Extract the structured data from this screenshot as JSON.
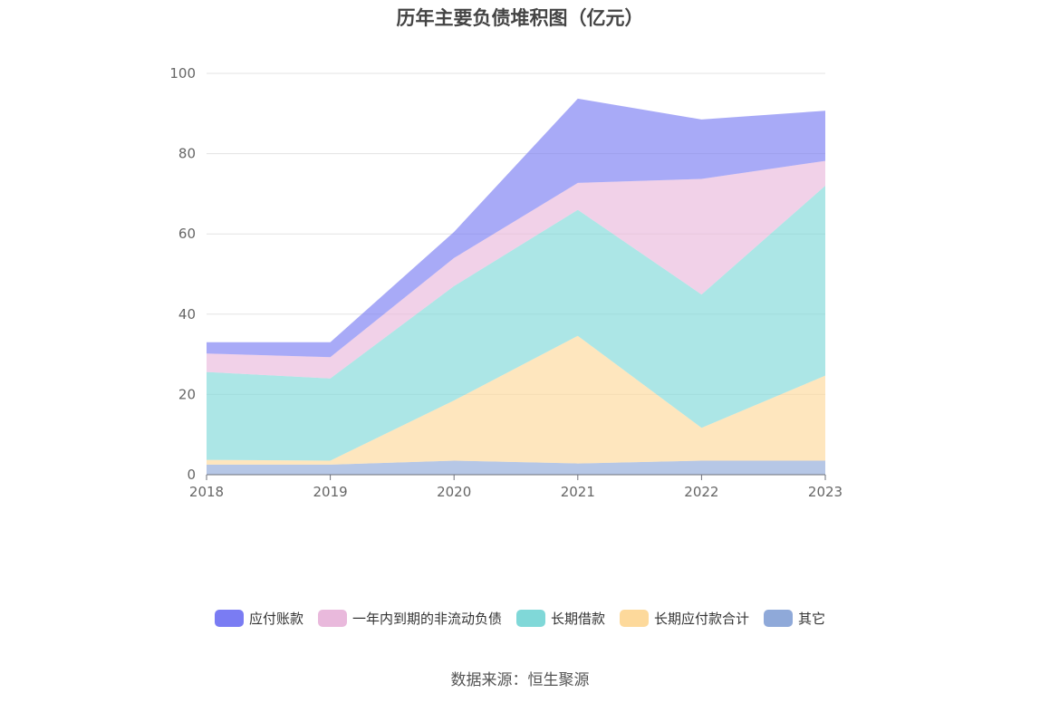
{
  "chart_data": {
    "type": "area",
    "stacked": true,
    "title": "历年主要负债堆积图（亿元）",
    "x": [
      "2018",
      "2019",
      "2020",
      "2021",
      "2022",
      "2023"
    ],
    "ylim": [
      0,
      100
    ],
    "yticks": [
      0,
      20,
      40,
      60,
      80,
      100
    ],
    "grid": true,
    "legend_position": "bottom",
    "series": [
      {
        "name": "其它",
        "color": "#8fa9d9",
        "values": [
          2.5,
          2.5,
          3.5,
          2.8,
          3.5,
          3.5
        ]
      },
      {
        "name": "长期应付款合计",
        "color": "#fdd99b",
        "values": [
          1.2,
          1.0,
          15.0,
          31.8,
          8.2,
          21.2
        ]
      },
      {
        "name": "长期借款",
        "color": "#80d8d8",
        "values": [
          21.9,
          20.5,
          28.5,
          31.4,
          33.2,
          47.3
        ]
      },
      {
        "name": "一年内到期的非流动负债",
        "color": "#e9b9dc",
        "values": [
          4.6,
          5.3,
          7.0,
          6.7,
          28.8,
          6.2
        ]
      },
      {
        "name": "应付账款",
        "color": "#7a7cf3",
        "values": [
          2.8,
          3.7,
          6.5,
          21.0,
          14.8,
          12.5
        ]
      }
    ]
  },
  "legend_order": [
    4,
    3,
    2,
    1,
    0
  ],
  "source": "数据来源：恒生聚源"
}
